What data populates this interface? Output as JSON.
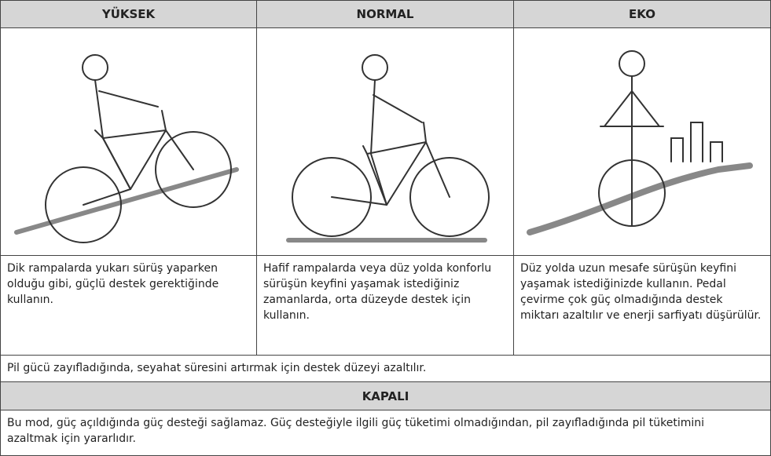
{
  "table": {
    "header": [
      "YÜKSEK",
      "NORMAL",
      "EKO"
    ],
    "descriptions": [
      "Dik rampalarda yukarı sürüş yaparken olduğu gibi, güçlü destek gerektiğinde kullanın.",
      "Hafif rampalarda veya düz yolda konforlu sürüşün keyfini yaşamak istediğiniz zamanlarda, orta düzeyde destek için kullanın.",
      "Düz yolda uzun mesafe sürüşün keyfini yaşamak istediğinizde kullanın. Pedal çevirme çok güç olmadığında destek miktarı azaltılır ve enerji sarfiyatı düşürülür."
    ],
    "note": "Pil gücü zayıfladığında, seyahat süresini artırmak için destek düzeyi azaltılır.",
    "off_header": "KAPALI",
    "off_text": "Bu mod, güç açıldığında güç desteği sağlamaz. Güç desteğiyle ilgili güç tüketimi olmadığından, pil zayıfladığında pil tüketimini azaltmak için yararlıdır."
  }
}
